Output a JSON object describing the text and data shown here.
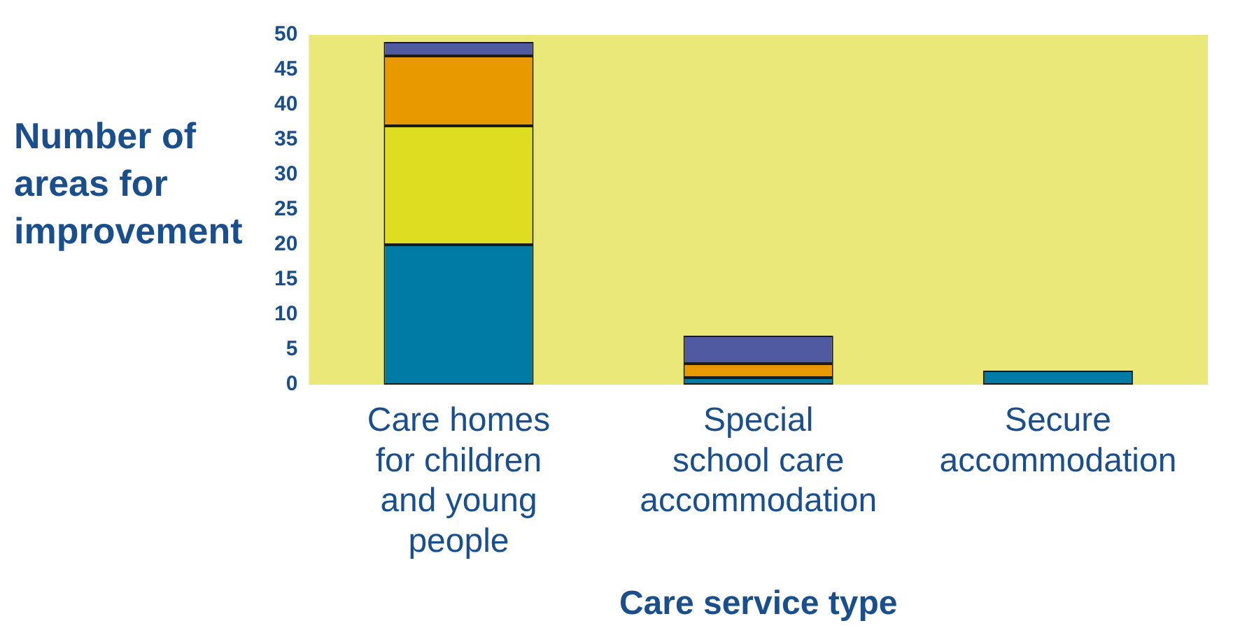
{
  "chart_data": {
    "type": "bar",
    "stacked": true,
    "ylabel": "Number of areas for improvement",
    "xlabel": "Care service type",
    "categories": [
      "Care homes for children and young people",
      "Special school care accommodation",
      "Secure accommodation"
    ],
    "series": [
      {
        "color": "#007ba6",
        "values": [
          20,
          1,
          2
        ]
      },
      {
        "color": "#dedd22",
        "values": [
          17,
          0,
          0
        ]
      },
      {
        "color": "#e89900",
        "values": [
          10,
          2,
          0
        ]
      },
      {
        "color": "#4f5aa0",
        "values": [
          2,
          4,
          0
        ]
      }
    ],
    "ylim": [
      0,
      50
    ],
    "yticks": [
      0,
      5,
      10,
      15,
      20,
      25,
      30,
      35,
      40,
      45,
      50
    ],
    "grid": false,
    "legend": false
  }
}
